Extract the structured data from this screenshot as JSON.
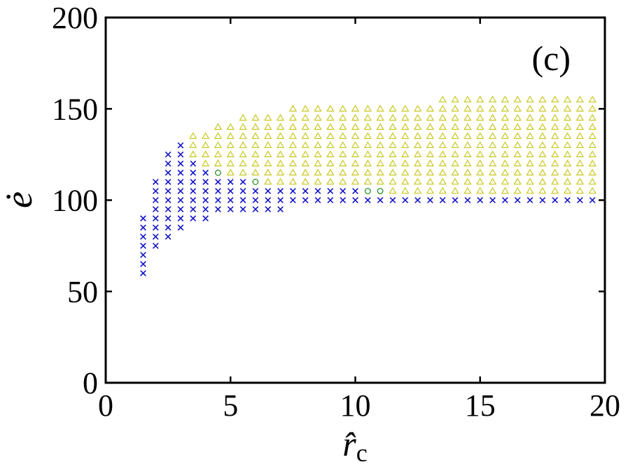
{
  "chart_data": {
    "type": "scatter",
    "panel_label": "(c)",
    "xlabel": {
      "base": "r̂",
      "subscript": "c"
    },
    "ylabel": "ė",
    "xlim": [
      0,
      20
    ],
    "ylim": [
      0,
      200
    ],
    "xticks": [
      0,
      5,
      10,
      15,
      20
    ],
    "yticks": [
      0,
      50,
      100,
      150,
      200
    ],
    "xtick_labels": [
      "0",
      "5",
      "10",
      "15",
      "20"
    ],
    "ytick_labels": [
      "0",
      "50",
      "100",
      "150",
      "200"
    ],
    "grid": false,
    "legend": "none",
    "colors": {
      "cross": "#1515c8",
      "triangle": "#c8c820",
      "circle": "#1a8c1a"
    },
    "series": [
      {
        "marker": "cross",
        "color": "#1515c8",
        "columns": [
          {
            "x": 1.5,
            "y_min": 60,
            "y_max": 90
          },
          {
            "x": 2.0,
            "y_min": 75,
            "y_max": 110
          },
          {
            "x": 2.5,
            "y_min": 80,
            "y_max": 125
          },
          {
            "x": 3.0,
            "y_min": 85,
            "y_max": 130
          },
          {
            "x": 3.5,
            "y_min": 90,
            "y_max": 120
          },
          {
            "x": 4.0,
            "y_min": 90,
            "y_max": 115
          },
          {
            "x": 4.5,
            "y_min": 95,
            "y_max": 110
          },
          {
            "x": 5.0,
            "y_min": 95,
            "y_max": 110
          },
          {
            "x": 5.5,
            "y_min": 95,
            "y_max": 110
          },
          {
            "x": 6.0,
            "y_min": 95,
            "y_max": 105
          },
          {
            "x": 6.5,
            "y_min": 95,
            "y_max": 105
          },
          {
            "x": 7.0,
            "y_min": 95,
            "y_max": 105
          },
          {
            "x": 7.5,
            "y_min": 100,
            "y_max": 105
          },
          {
            "x": 8.0,
            "y_min": 100,
            "y_max": 105
          },
          {
            "x": 8.5,
            "y_min": 100,
            "y_max": 105
          },
          {
            "x": 9.0,
            "y_min": 100,
            "y_max": 105
          },
          {
            "x": 9.5,
            "y_min": 100,
            "y_max": 105
          },
          {
            "x": 10.0,
            "y_min": 100,
            "y_max": 105
          },
          {
            "x": 10.5,
            "y_min": 100,
            "y_max": 100
          },
          {
            "x": 11.0,
            "y_min": 100,
            "y_max": 100
          },
          {
            "x": 11.5,
            "y_min": 100,
            "y_max": 100
          },
          {
            "x": 12.0,
            "y_min": 100,
            "y_max": 100
          },
          {
            "x": 12.5,
            "y_min": 100,
            "y_max": 100
          },
          {
            "x": 13.0,
            "y_min": 100,
            "y_max": 100
          },
          {
            "x": 13.5,
            "y_min": 100,
            "y_max": 100
          },
          {
            "x": 14.0,
            "y_min": 100,
            "y_max": 100
          },
          {
            "x": 14.5,
            "y_min": 100,
            "y_max": 100
          },
          {
            "x": 15.0,
            "y_min": 100,
            "y_max": 100
          },
          {
            "x": 15.5,
            "y_min": 100,
            "y_max": 100
          },
          {
            "x": 16.0,
            "y_min": 100,
            "y_max": 100
          },
          {
            "x": 16.5,
            "y_min": 100,
            "y_max": 100
          },
          {
            "x": 17.0,
            "y_min": 100,
            "y_max": 100
          },
          {
            "x": 17.5,
            "y_min": 100,
            "y_max": 100
          },
          {
            "x": 18.0,
            "y_min": 100,
            "y_max": 100
          },
          {
            "x": 18.5,
            "y_min": 100,
            "y_max": 100
          },
          {
            "x": 19.0,
            "y_min": 100,
            "y_max": 100
          },
          {
            "x": 19.5,
            "y_min": 100,
            "y_max": 100
          }
        ]
      },
      {
        "marker": "triangle",
        "color": "#c8c820",
        "columns": [
          {
            "x": 3.5,
            "y_min": 125,
            "y_max": 135
          },
          {
            "x": 4.0,
            "y_min": 120,
            "y_max": 135
          },
          {
            "x": 4.5,
            "y_min": 120,
            "y_max": 140
          },
          {
            "x": 5.0,
            "y_min": 115,
            "y_max": 140
          },
          {
            "x": 5.5,
            "y_min": 115,
            "y_max": 145
          },
          {
            "x": 6.0,
            "y_min": 115,
            "y_max": 145
          },
          {
            "x": 6.5,
            "y_min": 110,
            "y_max": 145
          },
          {
            "x": 7.0,
            "y_min": 110,
            "y_max": 145
          },
          {
            "x": 7.5,
            "y_min": 110,
            "y_max": 150
          },
          {
            "x": 8.0,
            "y_min": 110,
            "y_max": 150
          },
          {
            "x": 8.5,
            "y_min": 110,
            "y_max": 150
          },
          {
            "x": 9.0,
            "y_min": 110,
            "y_max": 150
          },
          {
            "x": 9.5,
            "y_min": 110,
            "y_max": 150
          },
          {
            "x": 10.0,
            "y_min": 110,
            "y_max": 150
          },
          {
            "x": 10.5,
            "y_min": 110,
            "y_max": 150
          },
          {
            "x": 11.0,
            "y_min": 110,
            "y_max": 150
          },
          {
            "x": 11.5,
            "y_min": 105,
            "y_max": 150
          },
          {
            "x": 12.0,
            "y_min": 105,
            "y_max": 150
          },
          {
            "x": 12.5,
            "y_min": 105,
            "y_max": 150
          },
          {
            "x": 13.0,
            "y_min": 105,
            "y_max": 150
          },
          {
            "x": 13.5,
            "y_min": 105,
            "y_max": 155
          },
          {
            "x": 14.0,
            "y_min": 105,
            "y_max": 155
          },
          {
            "x": 14.5,
            "y_min": 105,
            "y_max": 155
          },
          {
            "x": 15.0,
            "y_min": 105,
            "y_max": 155
          },
          {
            "x": 15.5,
            "y_min": 105,
            "y_max": 155
          },
          {
            "x": 16.0,
            "y_min": 105,
            "y_max": 155
          },
          {
            "x": 16.5,
            "y_min": 105,
            "y_max": 155
          },
          {
            "x": 17.0,
            "y_min": 105,
            "y_max": 155
          },
          {
            "x": 17.5,
            "y_min": 105,
            "y_max": 155
          },
          {
            "x": 18.0,
            "y_min": 105,
            "y_max": 155
          },
          {
            "x": 18.5,
            "y_min": 105,
            "y_max": 155
          },
          {
            "x": 19.0,
            "y_min": 105,
            "y_max": 155
          },
          {
            "x": 19.5,
            "y_min": 105,
            "y_max": 155
          }
        ]
      },
      {
        "marker": "circle",
        "color": "#1a8c1a",
        "points": [
          {
            "x": 4.5,
            "y": 115
          },
          {
            "x": 6.0,
            "y": 110
          },
          {
            "x": 10.5,
            "y": 105
          },
          {
            "x": 11.0,
            "y": 105
          }
        ]
      }
    ]
  }
}
